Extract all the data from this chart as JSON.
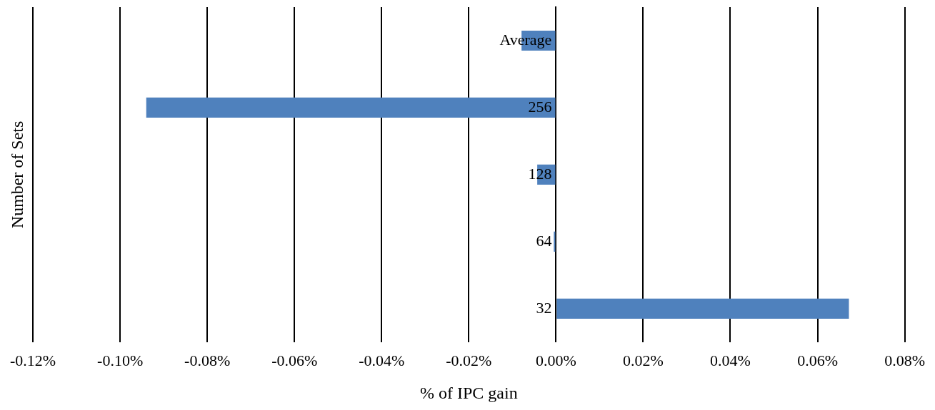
{
  "chart_data": {
    "type": "bar",
    "orientation": "horizontal",
    "xlabel": "% of IPC gain",
    "ylabel": "Number of Sets",
    "categories": [
      "Average",
      "256",
      "128",
      "64",
      "32"
    ],
    "series": [
      {
        "color": "#4f81bd",
        "values": [
          -0.0079,
          -0.094,
          -0.0043,
          -0.0005,
          0.0672
        ]
      }
    ],
    "xlim": [
      -0.12,
      0.08
    ],
    "xticks": [
      {
        "value": -0.12,
        "label": "-0.12%"
      },
      {
        "value": -0.1,
        "label": "-0.10%"
      },
      {
        "value": -0.08,
        "label": "-0.08%"
      },
      {
        "value": -0.06,
        "label": "-0.06%"
      },
      {
        "value": -0.04,
        "label": "-0.04%"
      },
      {
        "value": -0.02,
        "label": "-0.02%"
      },
      {
        "value": 0,
        "label": "0.00%"
      },
      {
        "value": 0.02,
        "label": "0.02%"
      },
      {
        "value": 0.04,
        "label": "0.04%"
      },
      {
        "value": 0.06,
        "label": "0.06%"
      },
      {
        "value": 0.08,
        "label": "0.08%"
      }
    ],
    "grid": "x",
    "legend": false
  }
}
